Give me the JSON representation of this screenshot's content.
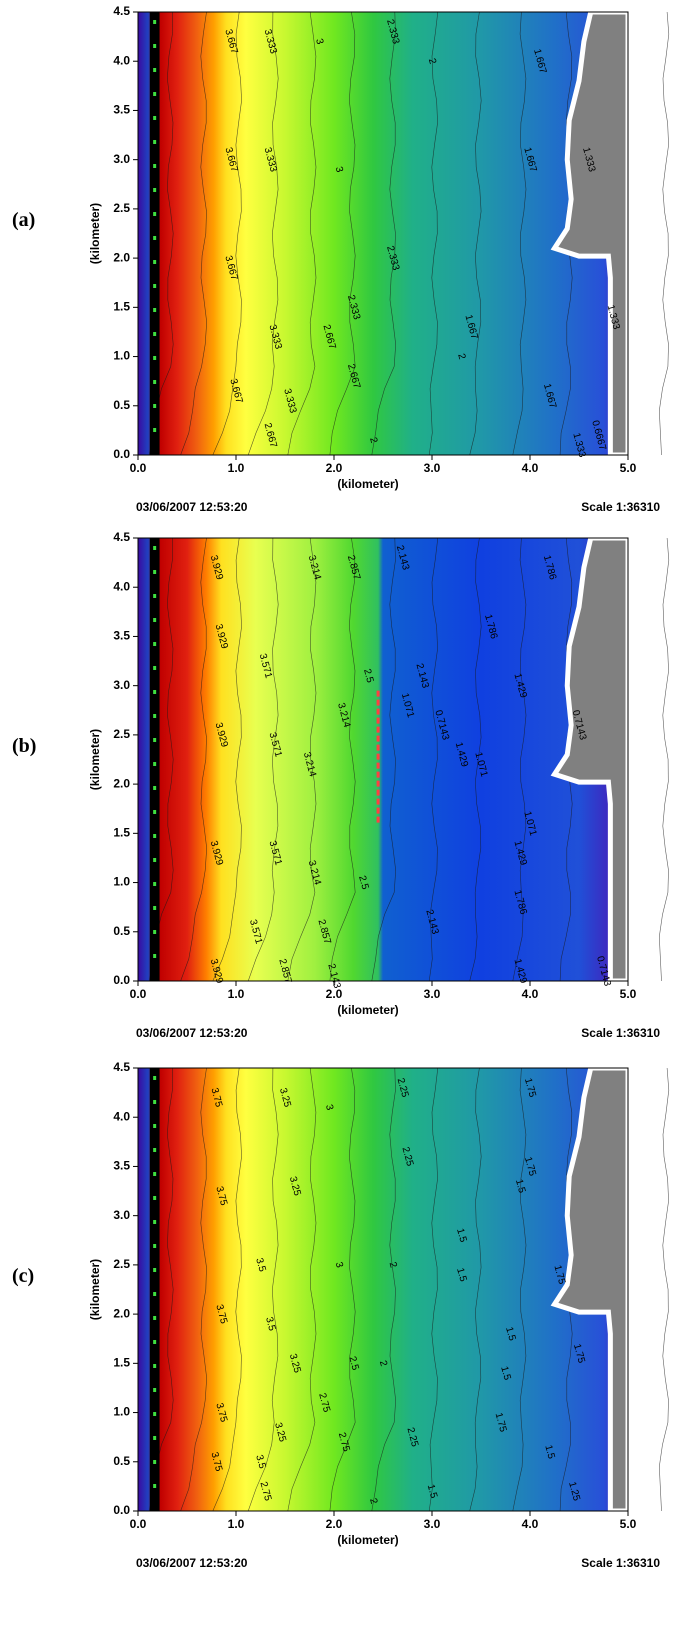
{
  "chart_data": [
    {
      "type": "contour",
      "panel_label": "(a)",
      "xlabel": "(kilometer)",
      "ylabel": "(kilometer)",
      "footer_left": "03/06/2007 12:53:20",
      "footer_right": "Scale 1:36310",
      "xlim": [
        0,
        5
      ],
      "ylim": [
        0,
        4.5
      ],
      "xticks": [
        {
          "value": 0,
          "label": "0.0"
        },
        {
          "value": 1,
          "label": "1.0"
        },
        {
          "value": 2,
          "label": "2.0"
        },
        {
          "value": 3,
          "label": "3.0"
        },
        {
          "value": 4,
          "label": "4.0"
        },
        {
          "value": 5,
          "label": "5.0"
        }
      ],
      "yticks": [
        {
          "value": 0,
          "label": "0.0"
        },
        0.5,
        {
          "value": 1,
          "label": "1.0"
        },
        1.5,
        {
          "value": 2,
          "label": "2.0"
        },
        2.5,
        {
          "value": 3,
          "label": "3.0"
        },
        3.5,
        {
          "value": 4,
          "label": "4.0"
        },
        4.5
      ],
      "annotations": [
        {
          "text": "3.667",
          "x": 0.95,
          "y": 4.2
        },
        {
          "text": "3.667",
          "x": 0.95,
          "y": 3.0
        },
        {
          "text": "3.667",
          "x": 0.95,
          "y": 1.9
        },
        {
          "text": "3.667",
          "x": 1.0,
          "y": 0.65
        },
        {
          "text": "3.333",
          "x": 1.35,
          "y": 4.2
        },
        {
          "text": "3.333",
          "x": 1.35,
          "y": 3.0
        },
        {
          "text": "3.333",
          "x": 1.4,
          "y": 1.2
        },
        {
          "text": "3.333",
          "x": 1.55,
          "y": 0.55
        },
        {
          "text": "3",
          "x": 1.85,
          "y": 4.2
        },
        {
          "text": "3",
          "x": 2.05,
          "y": 2.9
        },
        {
          "text": "2.667",
          "x": 1.95,
          "y": 1.2
        },
        {
          "text": "2.667",
          "x": 1.35,
          "y": 0.2
        },
        {
          "text": "2.667",
          "x": 2.2,
          "y": 0.8
        },
        {
          "text": "2.333",
          "x": 2.6,
          "y": 4.3
        },
        {
          "text": "2.333",
          "x": 2.2,
          "y": 1.5
        },
        {
          "text": "2.333",
          "x": 2.6,
          "y": 2.0
        },
        {
          "text": "2",
          "x": 3.0,
          "y": 4.0
        },
        {
          "text": "2",
          "x": 3.3,
          "y": 1.0
        },
        {
          "text": "2",
          "x": 2.4,
          "y": 0.15
        },
        {
          "text": "1.667",
          "x": 4.1,
          "y": 4.0
        },
        {
          "text": "1.667",
          "x": 4.0,
          "y": 3.0
        },
        {
          "text": "1.667",
          "x": 3.4,
          "y": 1.3
        },
        {
          "text": "1.667",
          "x": 4.2,
          "y": 0.6
        },
        {
          "text": "1.333",
          "x": 4.6,
          "y": 3.0
        },
        {
          "text": "1.333",
          "x": 4.85,
          "y": 1.4
        },
        {
          "text": "1.333",
          "x": 4.5,
          "y": 0.1
        },
        {
          "text": "0.6667",
          "x": 4.7,
          "y": 0.2
        }
      ]
    },
    {
      "type": "contour",
      "panel_label": "(b)",
      "xlabel": "(kilometer)",
      "ylabel": "(kilometer)",
      "footer_left": "03/06/2007 12:53:20",
      "footer_right": "Scale 1:36310",
      "xlim": [
        0,
        5
      ],
      "ylim": [
        0,
        4.5
      ],
      "xticks": [
        {
          "value": 0,
          "label": "0.0"
        },
        {
          "value": 1,
          "label": "1.0"
        },
        {
          "value": 2,
          "label": "2.0"
        },
        {
          "value": 3,
          "label": "3.0"
        },
        {
          "value": 4,
          "label": "4.0"
        },
        {
          "value": 5,
          "label": "5.0"
        }
      ],
      "yticks": [
        {
          "value": 0,
          "label": "0.0"
        },
        0.5,
        {
          "value": 1,
          "label": "1.0"
        },
        1.5,
        {
          "value": 2,
          "label": "2.0"
        },
        2.5,
        {
          "value": 3,
          "label": "3.0"
        },
        3.5,
        {
          "value": 4,
          "label": "4.0"
        },
        4.5
      ],
      "annotations": [
        {
          "text": "3.929",
          "x": 0.8,
          "y": 4.2
        },
        {
          "text": "3.929",
          "x": 0.85,
          "y": 3.5
        },
        {
          "text": "3.929",
          "x": 0.85,
          "y": 2.5
        },
        {
          "text": "3.929",
          "x": 0.8,
          "y": 1.3
        },
        {
          "text": "3.929",
          "x": 0.8,
          "y": 0.1
        },
        {
          "text": "3.571",
          "x": 1.3,
          "y": 3.2
        },
        {
          "text": "3.571",
          "x": 1.4,
          "y": 2.4
        },
        {
          "text": "3.571",
          "x": 1.4,
          "y": 1.3
        },
        {
          "text": "3.571",
          "x": 1.2,
          "y": 0.5
        },
        {
          "text": "3.214",
          "x": 1.8,
          "y": 4.2
        },
        {
          "text": "3.214",
          "x": 1.75,
          "y": 2.2
        },
        {
          "text": "3.214",
          "x": 1.8,
          "y": 1.1
        },
        {
          "text": "3.214",
          "x": 2.1,
          "y": 2.7
        },
        {
          "text": "2.857",
          "x": 2.2,
          "y": 4.2
        },
        {
          "text": "2.857",
          "x": 1.5,
          "y": 0.1
        },
        {
          "text": "2.857",
          "x": 1.9,
          "y": 0.5
        },
        {
          "text": "2.5",
          "x": 2.35,
          "y": 3.1
        },
        {
          "text": "2.5",
          "x": 2.3,
          "y": 1.0
        },
        {
          "text": "2.143",
          "x": 2.7,
          "y": 4.3
        },
        {
          "text": "2.143",
          "x": 2.9,
          "y": 3.1
        },
        {
          "text": "2.143",
          "x": 3.0,
          "y": 0.6
        },
        {
          "text": "2.143",
          "x": 2.0,
          "y": 0.05
        },
        {
          "text": "1.786",
          "x": 3.6,
          "y": 3.6
        },
        {
          "text": "1.786",
          "x": 3.9,
          "y": 0.8
        },
        {
          "text": "1.786",
          "x": 4.2,
          "y": 4.2
        },
        {
          "text": "1.429",
          "x": 3.9,
          "y": 3.0
        },
        {
          "text": "1.429",
          "x": 3.3,
          "y": 2.3
        },
        {
          "text": "1.429",
          "x": 3.9,
          "y": 1.3
        },
        {
          "text": "1.429",
          "x": 3.9,
          "y": 0.1
        },
        {
          "text": "1.071",
          "x": 2.75,
          "y": 2.8
        },
        {
          "text": "1.071",
          "x": 3.5,
          "y": 2.2
        },
        {
          "text": "1.071",
          "x": 4.0,
          "y": 1.6
        },
        {
          "text": "0.7143",
          "x": 3.1,
          "y": 2.6
        },
        {
          "text": "0.7143",
          "x": 4.5,
          "y": 2.6
        },
        {
          "text": "0.7143",
          "x": 4.75,
          "y": 0.1
        }
      ]
    },
    {
      "type": "contour",
      "panel_label": "(c)",
      "xlabel": "(kilometer)",
      "ylabel": "(kilometer)",
      "footer_left": "03/06/2007 12:53:20",
      "footer_right": "Scale 1:36310",
      "xlim": [
        0,
        5
      ],
      "ylim": [
        0,
        4.5
      ],
      "xticks": [
        {
          "value": 0,
          "label": "0.0"
        },
        {
          "value": 1,
          "label": "1.0"
        },
        {
          "value": 2,
          "label": "2.0"
        },
        {
          "value": 3,
          "label": "3.0"
        },
        {
          "value": 4,
          "label": "4.0"
        },
        {
          "value": 5,
          "label": "5.0"
        }
      ],
      "yticks": [
        {
          "value": 0,
          "label": "0.0"
        },
        0.5,
        {
          "value": 1,
          "label": "1.0"
        },
        1.5,
        {
          "value": 2,
          "label": "2.0"
        },
        2.5,
        {
          "value": 3,
          "label": "3.0"
        },
        3.5,
        {
          "value": 4,
          "label": "4.0"
        },
        4.5
      ],
      "annotations": [
        {
          "text": "3.75",
          "x": 0.8,
          "y": 4.2
        },
        {
          "text": "3.75",
          "x": 0.85,
          "y": 3.2
        },
        {
          "text": "3.75",
          "x": 0.85,
          "y": 2.0
        },
        {
          "text": "3.75",
          "x": 0.85,
          "y": 1.0
        },
        {
          "text": "3.75",
          "x": 0.8,
          "y": 0.5
        },
        {
          "text": "3.5",
          "x": 1.25,
          "y": 2.5
        },
        {
          "text": "3.5",
          "x": 1.35,
          "y": 1.9
        },
        {
          "text": "3.5",
          "x": 1.25,
          "y": 0.5
        },
        {
          "text": "3.25",
          "x": 1.5,
          "y": 4.2
        },
        {
          "text": "3.25",
          "x": 1.6,
          "y": 3.3
        },
        {
          "text": "3.25",
          "x": 1.6,
          "y": 1.5
        },
        {
          "text": "3.25",
          "x": 1.45,
          "y": 0.8
        },
        {
          "text": "3",
          "x": 1.95,
          "y": 4.1
        },
        {
          "text": "3",
          "x": 2.05,
          "y": 2.5
        },
        {
          "text": "2.75",
          "x": 1.9,
          "y": 1.1
        },
        {
          "text": "2.75",
          "x": 1.3,
          "y": 0.2
        },
        {
          "text": "2.75",
          "x": 2.1,
          "y": 0.7
        },
        {
          "text": "2.5",
          "x": 2.2,
          "y": 1.5
        },
        {
          "text": "2.25",
          "x": 2.7,
          "y": 4.3
        },
        {
          "text": "2.25",
          "x": 2.75,
          "y": 3.6
        },
        {
          "text": "2.25",
          "x": 2.8,
          "y": 0.75
        },
        {
          "text": "2",
          "x": 2.6,
          "y": 2.5
        },
        {
          "text": "2",
          "x": 2.5,
          "y": 1.5
        },
        {
          "text": "2",
          "x": 2.4,
          "y": 0.1
        },
        {
          "text": "1.75",
          "x": 4.0,
          "y": 4.3
        },
        {
          "text": "1.75",
          "x": 4.0,
          "y": 3.5
        },
        {
          "text": "1.75",
          "x": 4.3,
          "y": 2.4
        },
        {
          "text": "1.75",
          "x": 4.5,
          "y": 1.6
        },
        {
          "text": "1.75",
          "x": 3.7,
          "y": 0.9
        },
        {
          "text": "1.5",
          "x": 3.9,
          "y": 3.3
        },
        {
          "text": "1.5",
          "x": 3.3,
          "y": 2.8
        },
        {
          "text": "1.5",
          "x": 3.3,
          "y": 2.4
        },
        {
          "text": "1.5",
          "x": 3.8,
          "y": 1.8
        },
        {
          "text": "1.5",
          "x": 3.75,
          "y": 1.4
        },
        {
          "text": "1.5",
          "x": 4.2,
          "y": 0.6
        },
        {
          "text": "1.5",
          "x": 3.0,
          "y": 0.2
        },
        {
          "text": "1.25",
          "x": 4.45,
          "y": 0.2
        }
      ]
    }
  ]
}
